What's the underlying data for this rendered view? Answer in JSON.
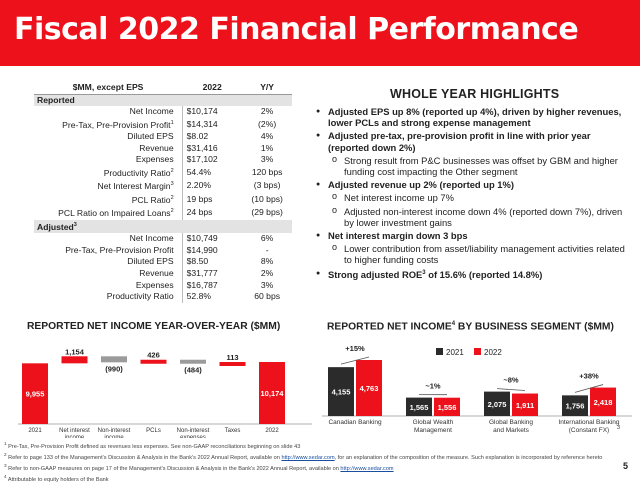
{
  "title": "Fiscal 2022 Financial Performance",
  "colors": {
    "red": "#ec111a",
    "gray": "#9b9b9b",
    "dark": "#2b2b2b"
  },
  "metrics": {
    "headers": [
      "$MM, except EPS",
      "2022",
      "Y/Y"
    ],
    "reported_label": "Reported",
    "reported": [
      {
        "label": "Net Income",
        "sup": "",
        "value": "$10,174",
        "yy": "2%"
      },
      {
        "label": "Pre-Tax, Pre-Provision Profit",
        "sup": "1",
        "value": "$14,314",
        "yy": "(2%)"
      },
      {
        "label": "Diluted EPS",
        "sup": "",
        "value": "$8.02",
        "yy": "4%"
      },
      {
        "label": "Revenue",
        "sup": "",
        "value": "$31,416",
        "yy": "1%"
      },
      {
        "label": "Expenses",
        "sup": "",
        "value": "$17,102",
        "yy": "3%"
      },
      {
        "label": "Productivity Ratio",
        "sup": "2",
        "value": "54.4%",
        "yy": "120 bps"
      },
      {
        "label": "Net Interest Margin",
        "sup": "3",
        "value": "2.20%",
        "yy": "(3 bps)"
      },
      {
        "label": "PCL Ratio",
        "sup": "2",
        "value": "19 bps",
        "yy": "(10 bps)"
      },
      {
        "label": "PCL Ratio on Impaired Loans",
        "sup": "2",
        "value": "24 bps",
        "yy": "(29 bps)"
      }
    ],
    "adjusted_label": "Adjusted",
    "adjusted_sup": "3",
    "adjusted": [
      {
        "label": "Net Income",
        "sup": "",
        "value": "$10,749",
        "yy": "6%"
      },
      {
        "label": "Pre-Tax, Pre-Provision Profit",
        "sup": "",
        "value": "$14,990",
        "yy": "-"
      },
      {
        "label": "Diluted EPS",
        "sup": "",
        "value": "$8.50",
        "yy": "8%"
      },
      {
        "label": "Revenue",
        "sup": "",
        "value": "$31,777",
        "yy": "2%"
      },
      {
        "label": "Expenses",
        "sup": "",
        "value": "$16,787",
        "yy": "3%"
      },
      {
        "label": "Productivity Ratio",
        "sup": "",
        "value": "52.8%",
        "yy": "60 bps"
      }
    ]
  },
  "highlights": {
    "title": "WHOLE YEAR HIGHLIGHTS",
    "items": [
      {
        "level": "b",
        "text": "Adjusted EPS up 8% (reported up 4%), driven by higher revenues, lower PCLs and strong expense management"
      },
      {
        "level": "b",
        "text": "Adjusted pre-tax, pre-provision profit in line with prior year (reported down 2%)"
      },
      {
        "level": "s",
        "text": "Strong result from P&C businesses was offset by GBM and higher funding cost impacting the Other segment"
      },
      {
        "level": "b",
        "text": "Adjusted revenue up 2% (reported up 1%)"
      },
      {
        "level": "s",
        "text": "Net interest income up 7%"
      },
      {
        "level": "s",
        "text": "Adjusted non-interest income down 4% (reported down 7%), driven by lower investment gains"
      },
      {
        "level": "b",
        "text": "Net interest margin down 3 bps"
      },
      {
        "level": "s",
        "text": "Lower contribution from asset/liability management activities related to higher funding costs"
      }
    ],
    "last_pre": "Strong adjusted ROE",
    "last_sup": "3",
    "last_post": " of 15.6% (reported 14.8%)"
  },
  "chart_data": [
    {
      "type": "waterfall",
      "title": "REPORTED NET INCOME YEAR-OVER-YEAR ($MM)",
      "categories": [
        "2021",
        "Net interest income",
        "Non-interest income",
        "PCLs",
        "Non-interest expenses",
        "Taxes",
        "2022"
      ],
      "values": [
        9955,
        1154,
        -990,
        426,
        -484,
        113,
        10174
      ],
      "labels": [
        "9,955",
        "1,154",
        "(990)",
        "426",
        "(484)",
        "113",
        "10,174"
      ]
    },
    {
      "type": "bar",
      "title": "REPORTED NET INCOME",
      "title_sup": "4",
      "title_post": " BY BUSINESS SEGMENT ($MM)",
      "categories": [
        "Canadian Banking",
        "Global Wealth Management",
        "Global Banking and Markets",
        "International Banking (Constant FX)"
      ],
      "category_sup": [
        "",
        "",
        "",
        "3"
      ],
      "series": [
        {
          "name": "2021",
          "values": [
            4155,
            1565,
            2075,
            1756
          ]
        },
        {
          "name": "2022",
          "values": [
            4763,
            1556,
            1911,
            2418
          ]
        }
      ],
      "labels_2021": [
        "4,155",
        "1,565",
        "2,075",
        "1,756"
      ],
      "labels_2022": [
        "4,763",
        "1,556",
        "1,911",
        "2,418"
      ],
      "changes": [
        "+15%",
        "~1%",
        "~8%",
        "+38%"
      ]
    }
  ],
  "footnotes": [
    {
      "sup": "1",
      "pre": " Pre-Tax, Pre-Provision Profit defined as revenues less expenses. See non-GAAP reconciliations beginning on slide 43",
      "link": "",
      "post": ""
    },
    {
      "sup": "2",
      "pre": " Refer to page 133 of the Management's Discussion & Analysis in the Bank's 2022 Annual Report, available on ",
      "link": "http://www.sedar.com",
      "post": ", for an explanation of the composition of the measure. Such explanation is incorporated by reference hereto"
    },
    {
      "sup": "3",
      "pre": " Refer to non-GAAP measures on page 17 of the Management's Discussion & Analysis in the Bank's 2022 Annual Report, available on ",
      "link": "http://www.sedar.com",
      "post": ""
    },
    {
      "sup": "4",
      "pre": " Attributable to equity holders of the Bank",
      "link": "",
      "post": ""
    }
  ],
  "page_number": "5"
}
